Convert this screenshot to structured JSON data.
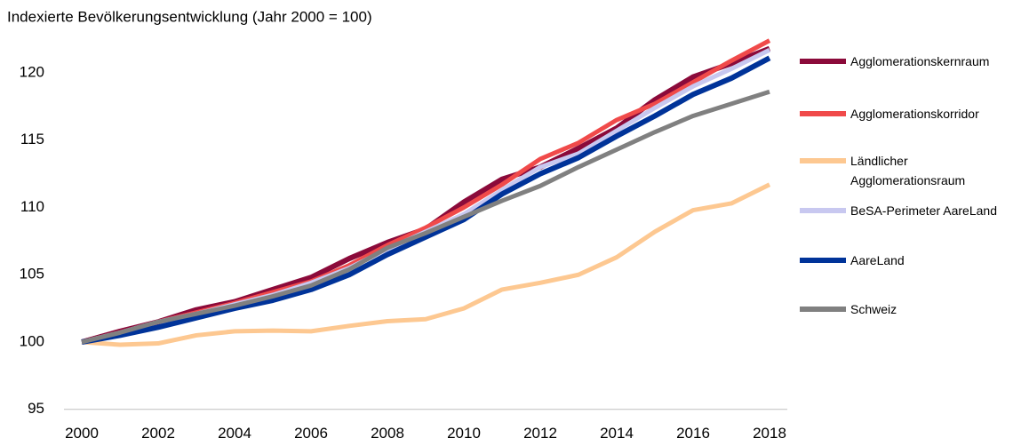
{
  "chart_data": {
    "type": "line",
    "title": "Indexierte Bevölkerungsentwicklung (Jahr 2000 = 100)",
    "x": [
      2000,
      2001,
      2002,
      2003,
      2004,
      2005,
      2006,
      2007,
      2008,
      2009,
      2010,
      2011,
      2012,
      2013,
      2014,
      2015,
      2016,
      2017,
      2018
    ],
    "xlim": [
      2000,
      2018
    ],
    "xticks": [
      2000,
      2002,
      2004,
      2006,
      2008,
      2010,
      2012,
      2014,
      2016,
      2018
    ],
    "ylim": [
      95,
      122.5
    ],
    "yticks": [
      95,
      100,
      105,
      110,
      115,
      120
    ],
    "grid": false,
    "legend": "right",
    "series": [
      {
        "name": "Agglomerationskernraum",
        "color": "#8b0a3a",
        "values": [
          100,
          100.8,
          101.5,
          102.4,
          103.0,
          103.9,
          104.8,
          106.2,
          107.4,
          108.4,
          110.4,
          112.1,
          113.0,
          114.4,
          115.9,
          118.0,
          119.7,
          120.7,
          121.8
        ]
      },
      {
        "name": "Agglomerationskorridor",
        "color": "#f04a4a",
        "values": [
          100,
          100.7,
          101.5,
          102.2,
          102.9,
          103.7,
          104.5,
          105.7,
          107.2,
          108.5,
          110.0,
          111.7,
          113.6,
          114.8,
          116.5,
          117.7,
          119.3,
          120.9,
          122.4
        ]
      },
      {
        "name": "Ländlicher Agglomerationsraum",
        "color": "#fdc891",
        "values": [
          100,
          99.8,
          99.9,
          100.5,
          100.8,
          100.85,
          100.8,
          101.2,
          101.55,
          101.7,
          102.5,
          103.9,
          104.4,
          105.0,
          106.3,
          108.2,
          109.8,
          110.3,
          111.7
        ]
      },
      {
        "name": "BeSA-Perimeter AareLand",
        "color": "#c8c8f0",
        "values": [
          100,
          100.7,
          101.5,
          102.1,
          102.8,
          103.5,
          104.4,
          105.5,
          106.9,
          108.2,
          109.5,
          111.3,
          113.0,
          114.0,
          115.7,
          117.4,
          119.0,
          120.3,
          121.7
        ]
      },
      {
        "name": "AareLand",
        "color": "#003399",
        "values": [
          100,
          100.5,
          101.1,
          101.8,
          102.5,
          103.1,
          103.9,
          105.0,
          106.5,
          107.8,
          109.1,
          111.0,
          112.5,
          113.7,
          115.3,
          116.8,
          118.4,
          119.6,
          121.1
        ]
      },
      {
        "name": "Schweiz",
        "color": "#808080",
        "values": [
          100,
          100.7,
          101.5,
          102.1,
          102.7,
          103.4,
          104.2,
          105.4,
          107.0,
          108.1,
          109.3,
          110.5,
          111.6,
          113.0,
          114.3,
          115.6,
          116.8,
          117.7,
          118.6
        ]
      }
    ]
  }
}
